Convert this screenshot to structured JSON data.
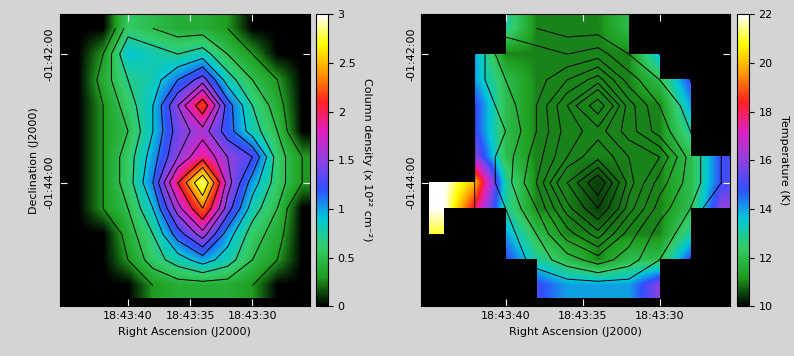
{
  "chart_data": [
    {
      "type": "heatmap",
      "xlabel": "Right Ascension (J2000)",
      "ylabel": "Declination (J2000)",
      "xlim": [
        45.5,
        25.4
      ],
      "ylim": [
        -105.92,
        -101.38
      ],
      "xticks": [
        {
          "value": 40,
          "label": "18:43:40"
        },
        {
          "value": 35,
          "label": "18:43:35"
        },
        {
          "value": 30,
          "label": "18:43:30"
        }
      ],
      "yticks": [
        {
          "value": -102,
          "label": "-01:42:00"
        },
        {
          "value": -104,
          "label": "-01:44:00"
        }
      ],
      "x": [
        44,
        42,
        40,
        38,
        36,
        34,
        32,
        30,
        28,
        26
      ],
      "y": [
        -101.6,
        -102.0,
        -102.4,
        -102.8,
        -103.2,
        -103.6,
        -104.0,
        -104.4,
        -104.8,
        -105.2,
        -105.6
      ],
      "values": [
        [
          0,
          0,
          0.6,
          0.5,
          0.4,
          0.4,
          0.3,
          0,
          0,
          0
        ],
        [
          0,
          0.3,
          0.9,
          0.8,
          0.7,
          0.8,
          0.5,
          0.3,
          0,
          0
        ],
        [
          0,
          0.4,
          0.7,
          0.8,
          1.1,
          1.4,
          0.8,
          0.5,
          0.3,
          0
        ],
        [
          0,
          0.3,
          0.6,
          0.9,
          1.5,
          2.2,
          1.2,
          0.7,
          0.4,
          0
        ],
        [
          0,
          0.3,
          0.5,
          0.9,
          1.4,
          1.6,
          1.2,
          0.8,
          0.5,
          0
        ],
        [
          0,
          0.3,
          0.6,
          1.0,
          1.5,
          1.9,
          1.5,
          1.3,
          0.6,
          0.3
        ],
        [
          0,
          0.3,
          0.6,
          1.1,
          2.0,
          2.9,
          1.6,
          1.0,
          0.6,
          0.3
        ],
        [
          0,
          0.3,
          0.5,
          0.9,
          1.6,
          2.3,
          1.4,
          0.8,
          0.5,
          0
        ],
        [
          0,
          0,
          0.4,
          0.7,
          1.2,
          1.6,
          1.0,
          0.6,
          0.4,
          0
        ],
        [
          0,
          0,
          0.3,
          0.6,
          0.8,
          1.0,
          0.8,
          0.5,
          0.3,
          0
        ],
        [
          0,
          0,
          0,
          0.3,
          0.4,
          0.4,
          0.4,
          0.3,
          0,
          0
        ]
      ],
      "contour_levels": [
        0.3,
        0.5,
        0.7,
        0.9,
        1.1,
        1.3,
        1.5,
        1.7,
        2.0,
        2.3,
        2.6
      ],
      "colorbar": {
        "label": "Column density (x 10²² cm⁻²)",
        "lim": [
          0,
          3
        ],
        "ticks": [
          0,
          0.5,
          1,
          1.5,
          2,
          2.5,
          3
        ]
      }
    },
    {
      "type": "heatmap",
      "xlabel": "Right Ascension (J2000)",
      "xlim": [
        45.5,
        25.4
      ],
      "ylim": [
        -105.92,
        -101.38
      ],
      "xticks": [
        {
          "value": 40,
          "label": "18:43:40"
        },
        {
          "value": 35,
          "label": "18:43:35"
        },
        {
          "value": 30,
          "label": "18:43:30"
        }
      ],
      "yticks": [
        {
          "value": -102,
          "label": "-01:42:00"
        },
        {
          "value": -104,
          "label": "-01:44:00"
        }
      ],
      "x": [
        44,
        42,
        40,
        38,
        36,
        34,
        32,
        30,
        28,
        26
      ],
      "y": [
        -101.6,
        -102.0,
        -102.4,
        -102.8,
        -103.2,
        -103.6,
        -104.0,
        -104.4,
        -104.8,
        -105.2,
        -105.6
      ],
      "values": [
        [
          null,
          null,
          13,
          11,
          11,
          11,
          12,
          null,
          null,
          null
        ],
        [
          null,
          14,
          11,
          11,
          11,
          11,
          11,
          14,
          null,
          null
        ],
        [
          null,
          14,
          12,
          11,
          11,
          11,
          11,
          12,
          15,
          null
        ],
        [
          null,
          15,
          12,
          11,
          11,
          11,
          11,
          11,
          14,
          null
        ],
        [
          null,
          15,
          12,
          11,
          11,
          11,
          11,
          11,
          13,
          null
        ],
        [
          null,
          16,
          12,
          11,
          11,
          11,
          11,
          11,
          12,
          15
        ],
        [
          22,
          20,
          13,
          11,
          11,
          10.5,
          11,
          11,
          12,
          15
        ],
        [
          22,
          18,
          13,
          11,
          11,
          10.5,
          11,
          11,
          12,
          16
        ],
        [
          21,
          null,
          14,
          12,
          11,
          11,
          11,
          11,
          13,
          null
        ],
        [
          null,
          null,
          15,
          13,
          12,
          11,
          12,
          12,
          15,
          null
        ],
        [
          null,
          null,
          null,
          15,
          14,
          14,
          14,
          16,
          null,
          null
        ]
      ],
      "contour_levels": [
        0.3,
        0.5,
        0.7,
        0.9,
        1.1,
        1.3,
        1.5,
        1.7,
        2.0,
        2.3,
        2.6
      ],
      "colorbar": {
        "label": "Temperature (K)",
        "lim": [
          10,
          22
        ],
        "ticks": [
          10,
          12,
          14,
          16,
          18,
          20,
          22
        ]
      }
    }
  ]
}
